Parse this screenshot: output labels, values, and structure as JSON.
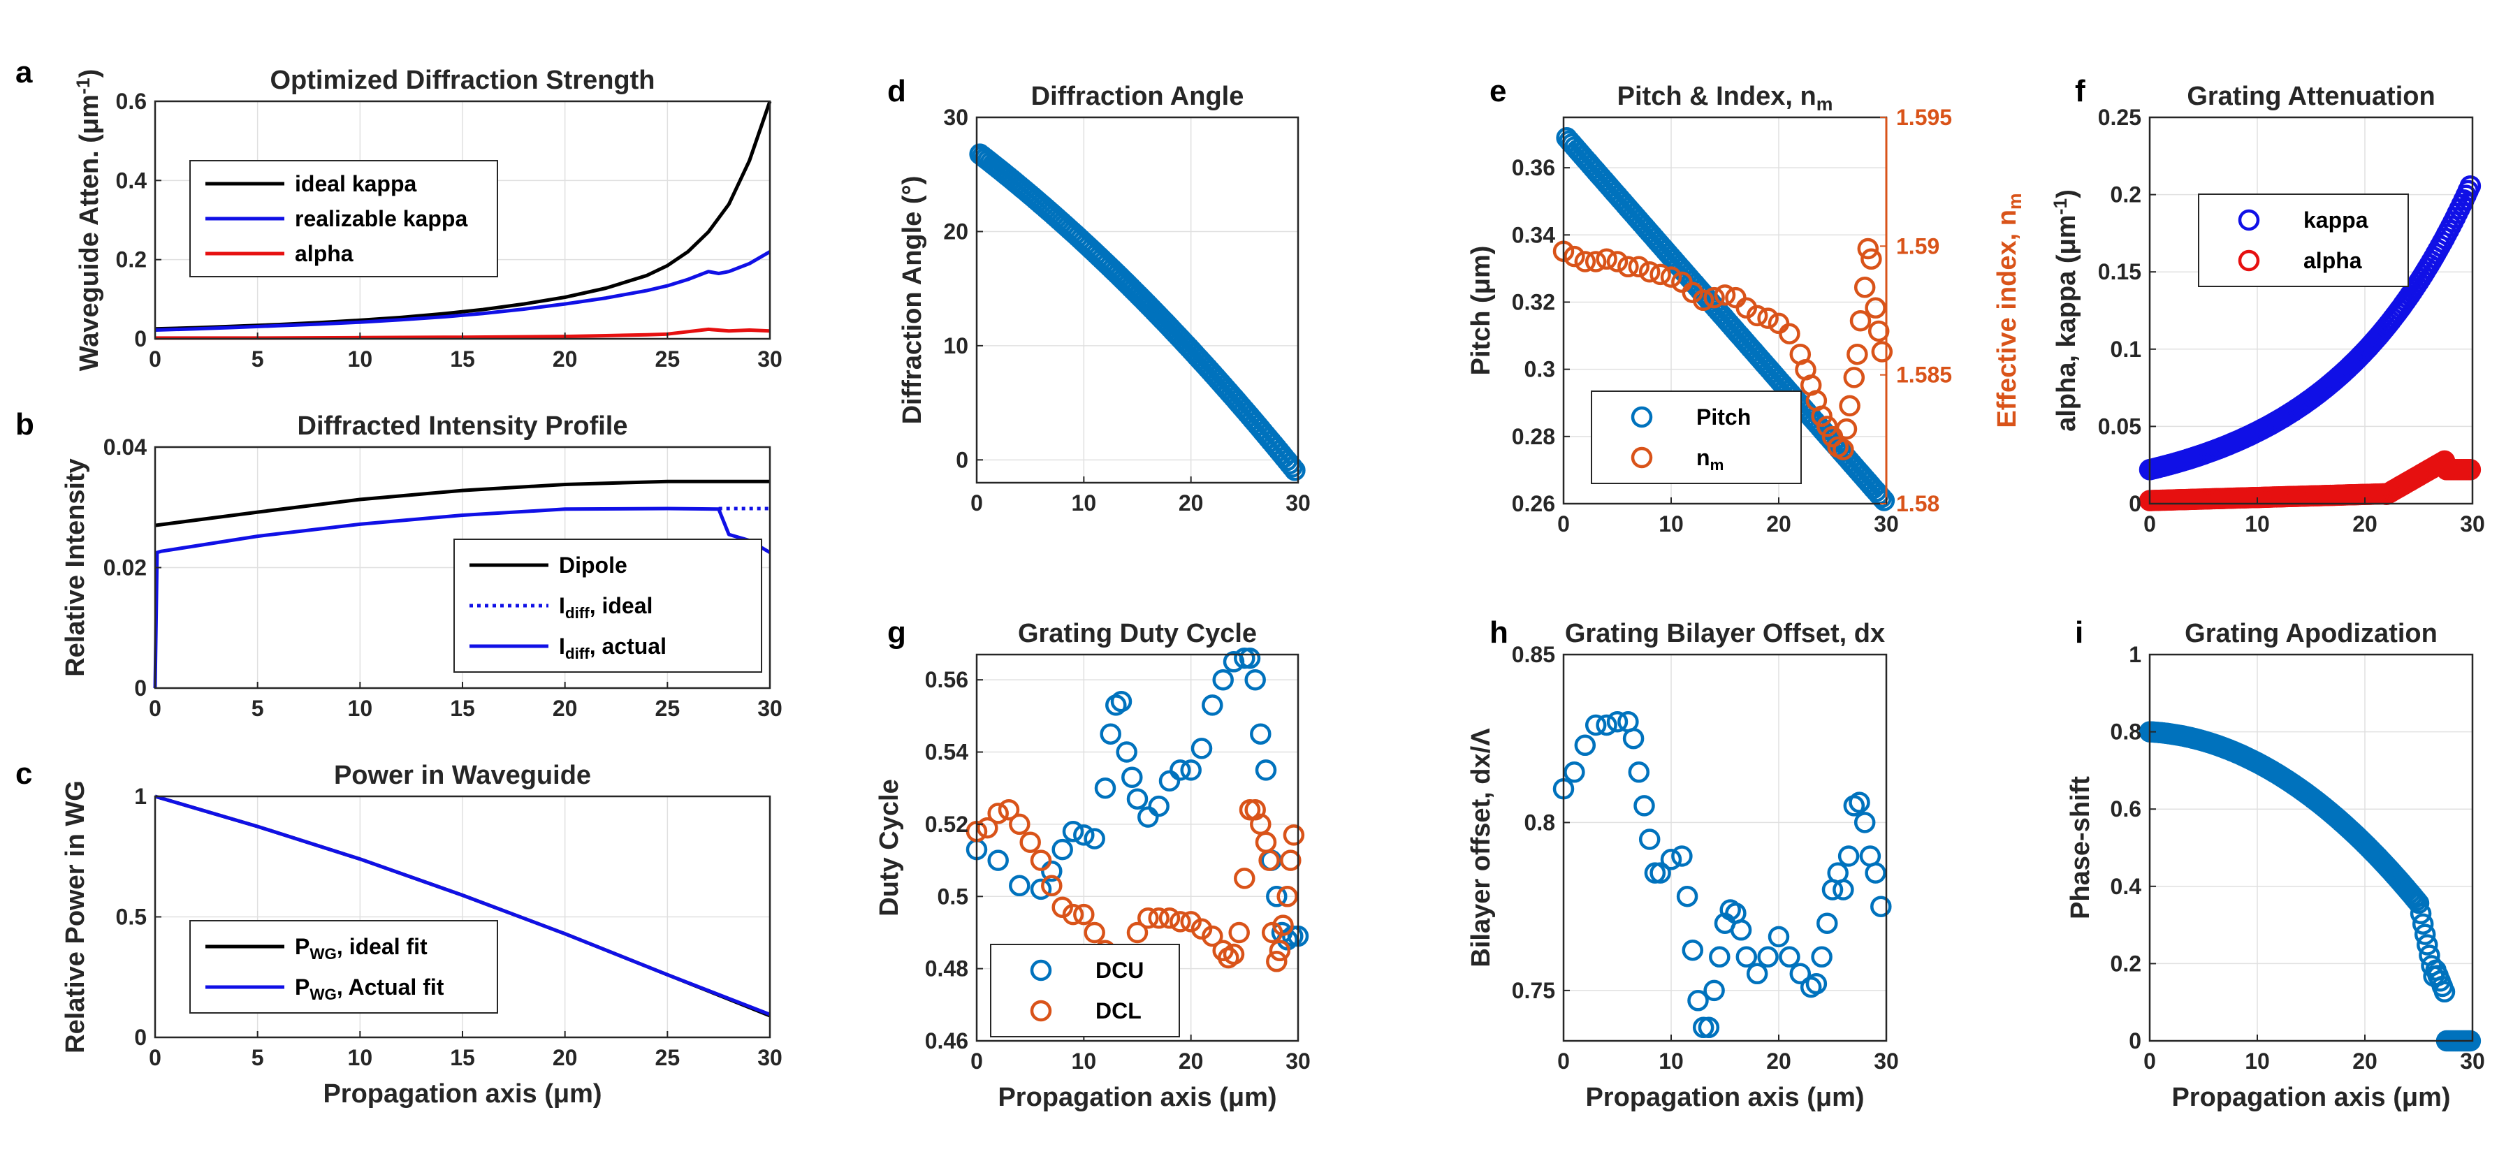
{
  "figure": {
    "style": "matlab-multipanel"
  },
  "chart_data": [
    {
      "id": "a",
      "letter": "a",
      "type": "line",
      "title": "Optimized Diffraction Strength",
      "ylabel": "Waveguide Atten. (μm",
      "ylabel_sup": "-1",
      "ylabel_end": ")",
      "xlabel": "",
      "xlim": [
        0,
        30
      ],
      "ylim": [
        0,
        0.6
      ],
      "xticks": [
        0,
        5,
        10,
        15,
        20,
        25,
        30
      ],
      "yticks": [
        0,
        0.2,
        0.4,
        0.6
      ],
      "ytick_labels": [
        "0",
        "0.2",
        "0.4",
        "0.6"
      ],
      "series": [
        {
          "name": "ideal kappa",
          "color": "#000000",
          "x": [
            0,
            2,
            4,
            6,
            8,
            10,
            12,
            14,
            16,
            18,
            20,
            22,
            24,
            25,
            26,
            27,
            28,
            29,
            30
          ],
          "y": [
            0.025,
            0.028,
            0.032,
            0.036,
            0.041,
            0.047,
            0.054,
            0.063,
            0.074,
            0.088,
            0.105,
            0.128,
            0.16,
            0.185,
            0.22,
            0.27,
            0.34,
            0.45,
            0.6
          ]
        },
        {
          "name": "realizable kappa",
          "color": "#1010e6",
          "x": [
            0,
            2,
            4,
            6,
            8,
            10,
            12,
            14,
            16,
            18,
            20,
            22,
            24,
            25,
            26,
            27,
            27.5,
            28,
            29,
            30
          ],
          "y": [
            0.022,
            0.025,
            0.029,
            0.033,
            0.037,
            0.042,
            0.048,
            0.055,
            0.064,
            0.075,
            0.088,
            0.103,
            0.122,
            0.134,
            0.15,
            0.17,
            0.165,
            0.17,
            0.19,
            0.22
          ]
        },
        {
          "name": "alpha",
          "color": "#e61010",
          "x": [
            0,
            5,
            10,
            15,
            20,
            22,
            24,
            25,
            26,
            27,
            28,
            29,
            30
          ],
          "y": [
            0.002,
            0.002,
            0.003,
            0.004,
            0.006,
            0.008,
            0.01,
            0.012,
            0.018,
            0.024,
            0.02,
            0.022,
            0.02
          ]
        }
      ],
      "legend": [
        "ideal kappa",
        "realizable kappa",
        "alpha"
      ]
    },
    {
      "id": "b",
      "letter": "b",
      "type": "line",
      "title": "Diffracted Intensity Profile",
      "ylabel": "Relative Intensity",
      "xlabel": "",
      "xlim": [
        0,
        30
      ],
      "ylim": [
        0,
        0.04
      ],
      "xticks": [
        0,
        5,
        10,
        15,
        20,
        25,
        30
      ],
      "yticks": [
        0,
        0.02,
        0.04
      ],
      "ytick_labels": [
        "0",
        "0.02",
        "0.04"
      ],
      "series": [
        {
          "name": "Dipole",
          "color": "#000000",
          "dash": "",
          "x": [
            0,
            5,
            10,
            15,
            20,
            25,
            30
          ],
          "y": [
            0.027,
            0.0292,
            0.0313,
            0.0328,
            0.0338,
            0.0343,
            0.0343
          ]
        },
        {
          "name": "I_diff, ideal",
          "color": "#1010e6",
          "dash": "5,6",
          "x": [
            27.5,
            28,
            29,
            30
          ],
          "y": [
            0.0298,
            0.0298,
            0.0298,
            0.0298
          ]
        },
        {
          "name": "I_diff, actual",
          "color": "#1010e6",
          "dash": "",
          "x": [
            0,
            0.1,
            0.3,
            5,
            10,
            15,
            20,
            25,
            27.5,
            28,
            29,
            30
          ],
          "y": [
            0,
            0.0225,
            0.0227,
            0.0252,
            0.0272,
            0.0287,
            0.0297,
            0.0298,
            0.0297,
            0.0255,
            0.0245,
            0.0225
          ]
        }
      ],
      "legend": [
        {
          "main": "Dipole",
          "sub": "",
          "rest": ""
        },
        {
          "main": "I",
          "sub": "diff",
          "rest": ", ideal"
        },
        {
          "main": "I",
          "sub": "diff",
          "rest": ", actual"
        }
      ]
    },
    {
      "id": "c",
      "letter": "c",
      "type": "line",
      "title": "Power in Waveguide",
      "ylabel": "Relative Power in WG",
      "xlabel": "Propagation axis (μm)",
      "xlim": [
        0,
        30
      ],
      "ylim": [
        0,
        1
      ],
      "xticks": [
        0,
        5,
        10,
        15,
        20,
        25,
        30
      ],
      "yticks": [
        0,
        0.5,
        1
      ],
      "ytick_labels": [
        "0",
        "0.5",
        "1"
      ],
      "series": [
        {
          "name": "P_WG, ideal fit",
          "color": "#000000",
          "x": [
            0,
            5,
            10,
            15,
            20,
            25,
            30
          ],
          "y": [
            1,
            0.875,
            0.74,
            0.59,
            0.43,
            0.26,
            0.09
          ]
        },
        {
          "name": "P_WG, Actual fit",
          "color": "#1010e6",
          "x": [
            0,
            5,
            10,
            15,
            20,
            25,
            30
          ],
          "y": [
            1,
            0.875,
            0.74,
            0.59,
            0.43,
            0.26,
            0.095
          ]
        }
      ],
      "legend": [
        {
          "main": "P",
          "sub": "WG",
          "rest": ", ideal fit"
        },
        {
          "main": "P",
          "sub": "WG",
          "rest": ", Actual fit"
        }
      ]
    },
    {
      "id": "d",
      "letter": "d",
      "type": "scatter",
      "title": "Diffraction Angle",
      "ylabel": "Diffraction Angle (°)",
      "xlabel": "",
      "xlim": [
        0,
        30
      ],
      "ylim": [
        -2,
        30
      ],
      "xticks": [
        0,
        10,
        20,
        30
      ],
      "yticks": [
        0,
        10,
        20,
        30
      ],
      "ytick_labels": [
        "0",
        "10",
        "20",
        "30"
      ],
      "series": [
        {
          "name": "angle",
          "color": "#0072bd",
          "fn": "angle"
        }
      ]
    },
    {
      "id": "e",
      "letter": "e",
      "type": "scatter",
      "title": "Pitch & Index, n",
      "title_sub": "m",
      "ylabel": "Pitch (μm)",
      "y2label": "Effective index, n",
      "y2label_sub": "m",
      "xlabel": "",
      "xlim": [
        0,
        30
      ],
      "ylim": [
        0.26,
        0.375
      ],
      "y2lim": [
        1.58,
        1.595
      ],
      "xticks": [
        0,
        10,
        20,
        30
      ],
      "yticks": [
        0.26,
        0.28,
        0.3,
        0.32,
        0.34,
        0.36
      ],
      "ytick_labels": [
        "0.26",
        "0.28",
        "0.3",
        "0.32",
        "0.34",
        "0.36"
      ],
      "y2ticks": [
        1.58,
        1.585,
        1.59,
        1.595
      ],
      "y2tick_labels": [
        "1.58",
        "1.585",
        "1.59",
        "1.595"
      ],
      "series": [
        {
          "name": "Pitch",
          "color": "#0072bd",
          "axis": "left",
          "fn": "pitch"
        },
        {
          "name": "n_m",
          "color": "#d95319",
          "axis": "right",
          "x": [
            0,
            1,
            2,
            3,
            4,
            5,
            6,
            7,
            8,
            9,
            10,
            11,
            12,
            13,
            14,
            15,
            16,
            17,
            18,
            19,
            20,
            21,
            22,
            22.5,
            23,
            23.5,
            24,
            24.5,
            25,
            25.5,
            26,
            26.3,
            26.6,
            27,
            27.3,
            27.6,
            28,
            28.3,
            28.6,
            29,
            29.3,
            29.6
          ],
          "y": [
            1.5898,
            1.5896,
            1.5894,
            1.5894,
            1.5895,
            1.5894,
            1.5892,
            1.5892,
            1.589,
            1.5889,
            1.5888,
            1.5886,
            1.5882,
            1.5879,
            1.588,
            1.5881,
            1.588,
            1.5876,
            1.5873,
            1.5872,
            1.587,
            1.5866,
            1.5858,
            1.5852,
            1.5846,
            1.584,
            1.5834,
            1.583,
            1.5826,
            1.5822,
            1.5821,
            1.5829,
            1.5838,
            1.5849,
            1.5858,
            1.5871,
            1.5884,
            1.5899,
            1.5895,
            1.5876,
            1.5867,
            1.5859
          ]
        }
      ],
      "legend": [
        {
          "main": "Pitch",
          "sub": ""
        },
        {
          "main": "n",
          "sub": "m"
        }
      ]
    },
    {
      "id": "f",
      "letter": "f",
      "type": "scatter",
      "title": "Grating Attenuation",
      "ylabel": "alpha, kappa (μm",
      "ylabel_sup": "-1",
      "ylabel_end": ")",
      "xlabel": "",
      "xlim": [
        0,
        30
      ],
      "ylim": [
        0,
        0.25
      ],
      "xticks": [
        0,
        10,
        20,
        30
      ],
      "yticks": [
        0,
        0.05,
        0.1,
        0.15,
        0.2,
        0.25
      ],
      "ytick_labels": [
        "0",
        "0.05",
        "0.1",
        "0.15",
        "0.2",
        "0.25"
      ],
      "series": [
        {
          "name": "kappa",
          "color": "#1010e6",
          "fn": "kappa"
        },
        {
          "name": "alpha",
          "color": "#e61010",
          "fn": "alpha"
        }
      ],
      "legend": [
        "kappa",
        "alpha"
      ]
    },
    {
      "id": "g",
      "letter": "g",
      "type": "scatter",
      "title": "Grating Duty Cycle",
      "ylabel": "Duty Cycle",
      "xlabel": "Propagation axis (μm)",
      "xlim": [
        0,
        30
      ],
      "ylim": [
        0.46,
        0.567
      ],
      "xticks": [
        0,
        10,
        20,
        30
      ],
      "yticks": [
        0.46,
        0.48,
        0.5,
        0.52,
        0.54,
        0.56
      ],
      "ytick_labels": [
        "0.46",
        "0.48",
        "0.5",
        "0.52",
        "0.54",
        "0.56"
      ],
      "series": [
        {
          "name": "DCU",
          "color": "#0072bd",
          "x": [
            0,
            2,
            4,
            6,
            7,
            8,
            9,
            10,
            11,
            12,
            12.5,
            13,
            13.5,
            14,
            14.5,
            15,
            16,
            17,
            18,
            19,
            20,
            21,
            22,
            23,
            24,
            25,
            25.5,
            26,
            26.5,
            27,
            27.5,
            28,
            28.5,
            29,
            29.5,
            30
          ],
          "y": [
            0.513,
            0.51,
            0.503,
            0.502,
            0.507,
            0.513,
            0.518,
            0.517,
            0.516,
            0.53,
            0.545,
            0.553,
            0.554,
            0.54,
            0.533,
            0.527,
            0.522,
            0.525,
            0.532,
            0.535,
            0.535,
            0.541,
            0.553,
            0.56,
            0.565,
            0.566,
            0.566,
            0.56,
            0.545,
            0.535,
            0.51,
            0.5,
            0.49,
            0.488,
            0.489,
            0.489
          ]
        },
        {
          "name": "DCL",
          "color": "#d95319",
          "x": [
            0,
            1,
            2,
            3,
            4,
            5,
            6,
            7,
            8,
            9,
            10,
            11,
            12,
            12.5,
            13,
            13.5,
            14,
            15,
            16,
            17,
            18,
            19,
            20,
            21,
            22,
            23,
            23.5,
            24,
            24.5,
            25,
            25.5,
            26,
            26.5,
            27,
            27.3,
            27.6,
            28,
            28.3,
            28.6,
            29,
            29.3,
            29.6
          ],
          "y": [
            0.518,
            0.519,
            0.523,
            0.524,
            0.52,
            0.515,
            0.51,
            0.503,
            0.497,
            0.495,
            0.495,
            0.49,
            0.485,
            0.478,
            0.468,
            0.466,
            0.473,
            0.49,
            0.494,
            0.494,
            0.494,
            0.493,
            0.493,
            0.491,
            0.489,
            0.485,
            0.483,
            0.484,
            0.49,
            0.505,
            0.524,
            0.524,
            0.52,
            0.515,
            0.51,
            0.49,
            0.482,
            0.485,
            0.492,
            0.5,
            0.51,
            0.517
          ]
        }
      ],
      "legend": [
        "DCU",
        "DCL"
      ]
    },
    {
      "id": "h",
      "letter": "h",
      "type": "scatter",
      "title": "Grating Bilayer Offset, dx",
      "ylabel": "Bilayer offset, dx/Λ",
      "xlabel": "Propagation axis (μm)",
      "xlim": [
        0,
        30
      ],
      "ylim": [
        0.735,
        0.85
      ],
      "xticks": [
        0,
        10,
        20,
        30
      ],
      "yticks": [
        0.75,
        0.8,
        0.85
      ],
      "ytick_labels": [
        "0.75",
        "0.8",
        "0.85"
      ],
      "series": [
        {
          "name": "dx",
          "color": "#0072bd",
          "x": [
            0,
            1,
            2,
            3,
            4,
            5,
            6,
            6.5,
            7,
            7.5,
            8,
            8.5,
            9,
            10,
            11,
            11.5,
            12,
            12.5,
            13,
            13.5,
            14,
            14.5,
            15,
            15.5,
            16,
            16.5,
            17,
            18,
            19,
            20,
            21,
            22,
            23,
            23.5,
            24,
            24.5,
            25,
            25.5,
            26,
            26.5,
            27,
            27.5,
            28,
            28.5,
            29,
            29.5
          ],
          "y": [
            0.81,
            0.815,
            0.823,
            0.829,
            0.829,
            0.83,
            0.83,
            0.825,
            0.815,
            0.805,
            0.795,
            0.785,
            0.785,
            0.789,
            0.79,
            0.778,
            0.762,
            0.747,
            0.739,
            0.739,
            0.75,
            0.76,
            0.77,
            0.774,
            0.773,
            0.768,
            0.76,
            0.755,
            0.76,
            0.766,
            0.76,
            0.755,
            0.751,
            0.752,
            0.76,
            0.77,
            0.78,
            0.785,
            0.78,
            0.79,
            0.805,
            0.806,
            0.8,
            0.79,
            0.785,
            0.775
          ]
        }
      ]
    },
    {
      "id": "i",
      "letter": "i",
      "type": "scatter",
      "title": "Grating Apodization",
      "ylabel": "Phase-shift",
      "xlabel": "Propagation axis (μm)",
      "xlim": [
        0,
        30
      ],
      "ylim": [
        0,
        1
      ],
      "xticks": [
        0,
        10,
        20,
        30
      ],
      "yticks": [
        0,
        0.2,
        0.4,
        0.6,
        0.8,
        1
      ],
      "ytick_labels": [
        "0",
        "0.2",
        "0.4",
        "0.6",
        "0.8",
        "1"
      ],
      "series": [
        {
          "name": "phase",
          "color": "#0072bd",
          "fn": "phase"
        }
      ]
    }
  ]
}
